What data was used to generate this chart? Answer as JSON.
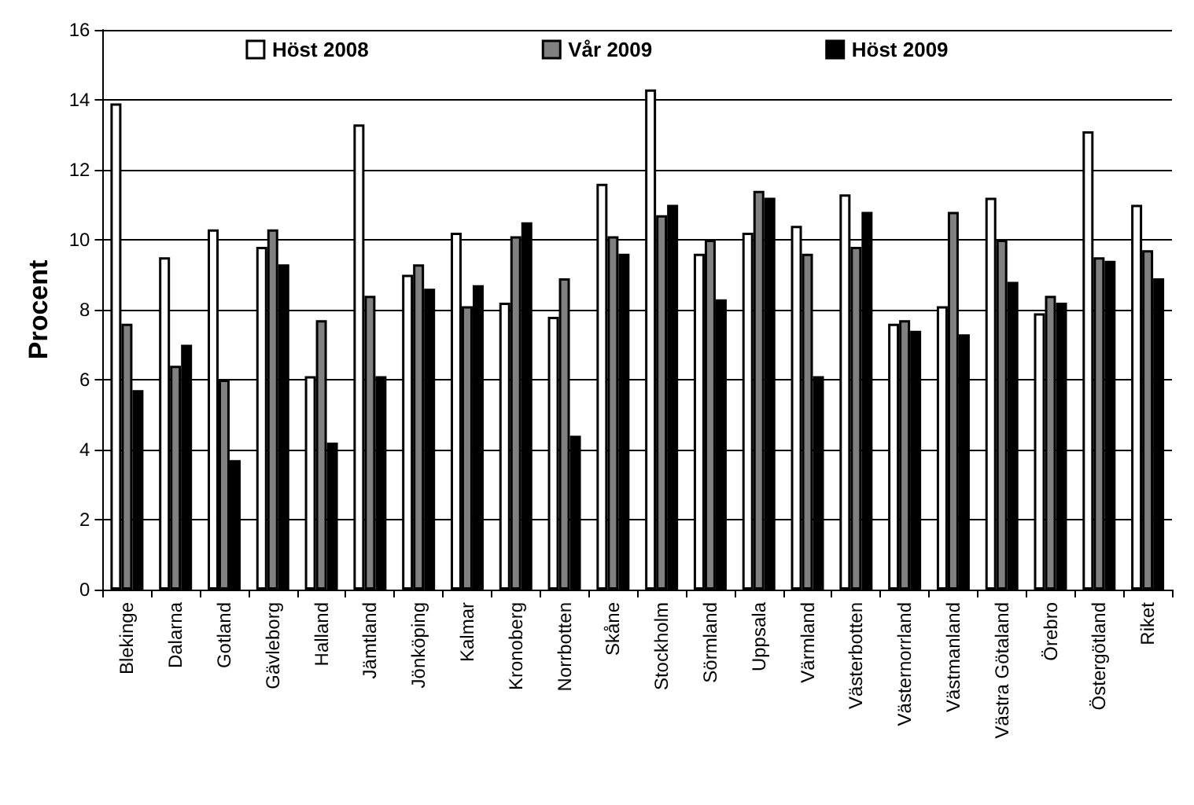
{
  "chart_data": {
    "type": "bar",
    "ylabel": "Procent",
    "categories": [
      "Blekinge",
      "Dalarna",
      "Gotland",
      "Gävleborg",
      "Halland",
      "Jämtland",
      "Jönköping",
      "Kalmar",
      "Kronoberg",
      "Norrbotten",
      "Skåne",
      "Stockholm",
      "Sörmland",
      "Uppsala",
      "Värmland",
      "Västerbotten",
      "Västernorrland",
      "Västmanland",
      "Västra Götaland",
      "Örebro",
      "Östergötland",
      "Riket"
    ],
    "series": [
      {
        "name": "Höst 2008",
        "color": "#ffffff",
        "values": [
          13.9,
          9.5,
          10.3,
          9.8,
          6.1,
          13.3,
          9.0,
          10.2,
          8.2,
          7.8,
          11.6,
          14.3,
          9.6,
          10.2,
          10.4,
          11.3,
          7.6,
          8.1,
          11.2,
          7.9,
          13.1,
          11.0
        ]
      },
      {
        "name": "Vår 2009",
        "color": "#808080",
        "values": [
          7.6,
          6.4,
          6.0,
          10.3,
          7.7,
          8.4,
          9.3,
          8.1,
          10.1,
          8.9,
          10.1,
          10.7,
          10.0,
          11.4,
          9.6,
          9.8,
          7.7,
          10.8,
          10.0,
          8.4,
          9.5,
          9.7
        ]
      },
      {
        "name": "Höst 2009",
        "color": "#000000",
        "values": [
          5.7,
          7.0,
          3.7,
          9.3,
          4.2,
          6.1,
          8.6,
          8.7,
          10.5,
          4.4,
          9.6,
          11.0,
          8.3,
          11.2,
          6.1,
          10.8,
          7.4,
          7.3,
          8.8,
          8.2,
          9.4,
          8.9
        ]
      }
    ],
    "ylim": [
      0,
      16
    ],
    "yticks": [
      0,
      2,
      4,
      6,
      8,
      10,
      12,
      14,
      16
    ],
    "grid": "y",
    "legend": "top"
  }
}
